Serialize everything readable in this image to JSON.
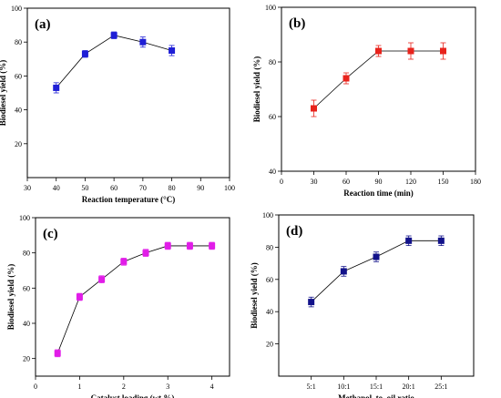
{
  "chart_data": [
    {
      "type": "line",
      "panel_label": "(a)",
      "xlabel": "Reaction temperature (°C)",
      "ylabel": "Biodiesel yield (%)",
      "xlim": [
        30,
        100
      ],
      "ylim": [
        0,
        100
      ],
      "xticks": [
        30,
        40,
        50,
        60,
        70,
        80,
        90,
        100
      ],
      "yticks": [
        20,
        40,
        60,
        80,
        100
      ],
      "color": "#1f1fd6",
      "x": [
        40,
        50,
        60,
        70,
        80
      ],
      "values": [
        53,
        73,
        84,
        80,
        75
      ],
      "errors": [
        3,
        2,
        2,
        3,
        3
      ],
      "grid": false
    },
    {
      "type": "line",
      "panel_label": "(b)",
      "xlabel": "Reaction time (min)",
      "ylabel": "Biodiesel yield (%)",
      "xlim": [
        0,
        180
      ],
      "ylim": [
        40,
        100
      ],
      "xticks": [
        0,
        30,
        60,
        90,
        120,
        150,
        180
      ],
      "yticks": [
        40,
        60,
        80,
        100
      ],
      "color": "#e8231c",
      "x": [
        30,
        60,
        90,
        120,
        150
      ],
      "values": [
        63,
        74,
        84,
        84,
        84
      ],
      "errors": [
        3,
        2,
        2,
        3,
        3
      ],
      "grid": false
    },
    {
      "type": "line",
      "panel_label": "(c)",
      "xlabel": "Catalyst loading (wt.%)",
      "ylabel": "Biodiesel yield (%)",
      "xlim": [
        0,
        4.4
      ],
      "ylim": [
        10,
        100
      ],
      "xticks": [
        0,
        1,
        2,
        3,
        4
      ],
      "yticks": [
        20,
        40,
        60,
        80,
        100
      ],
      "color": "#e11de8",
      "x": [
        0.5,
        1,
        1.5,
        2,
        2.5,
        3,
        3.5,
        4
      ],
      "values": [
        23,
        55,
        65,
        75,
        80,
        84,
        84,
        84
      ],
      "errors": [
        2,
        2,
        2,
        2,
        2,
        2,
        2,
        2
      ],
      "grid": false
    },
    {
      "type": "line",
      "panel_label": "(d)",
      "xlabel": "Methanol–to–oil ratio",
      "ylabel": "Biodiesel yield (%)",
      "ylim": [
        0,
        100
      ],
      "yticks": [
        20,
        40,
        60,
        80,
        100
      ],
      "color": "#12128a",
      "categories": [
        "5:1",
        "10:1",
        "15:1",
        "20:1",
        "25:1"
      ],
      "values": [
        46,
        65,
        74,
        84,
        84
      ],
      "errors": [
        3,
        3,
        3,
        3,
        3
      ],
      "grid": false
    }
  ]
}
